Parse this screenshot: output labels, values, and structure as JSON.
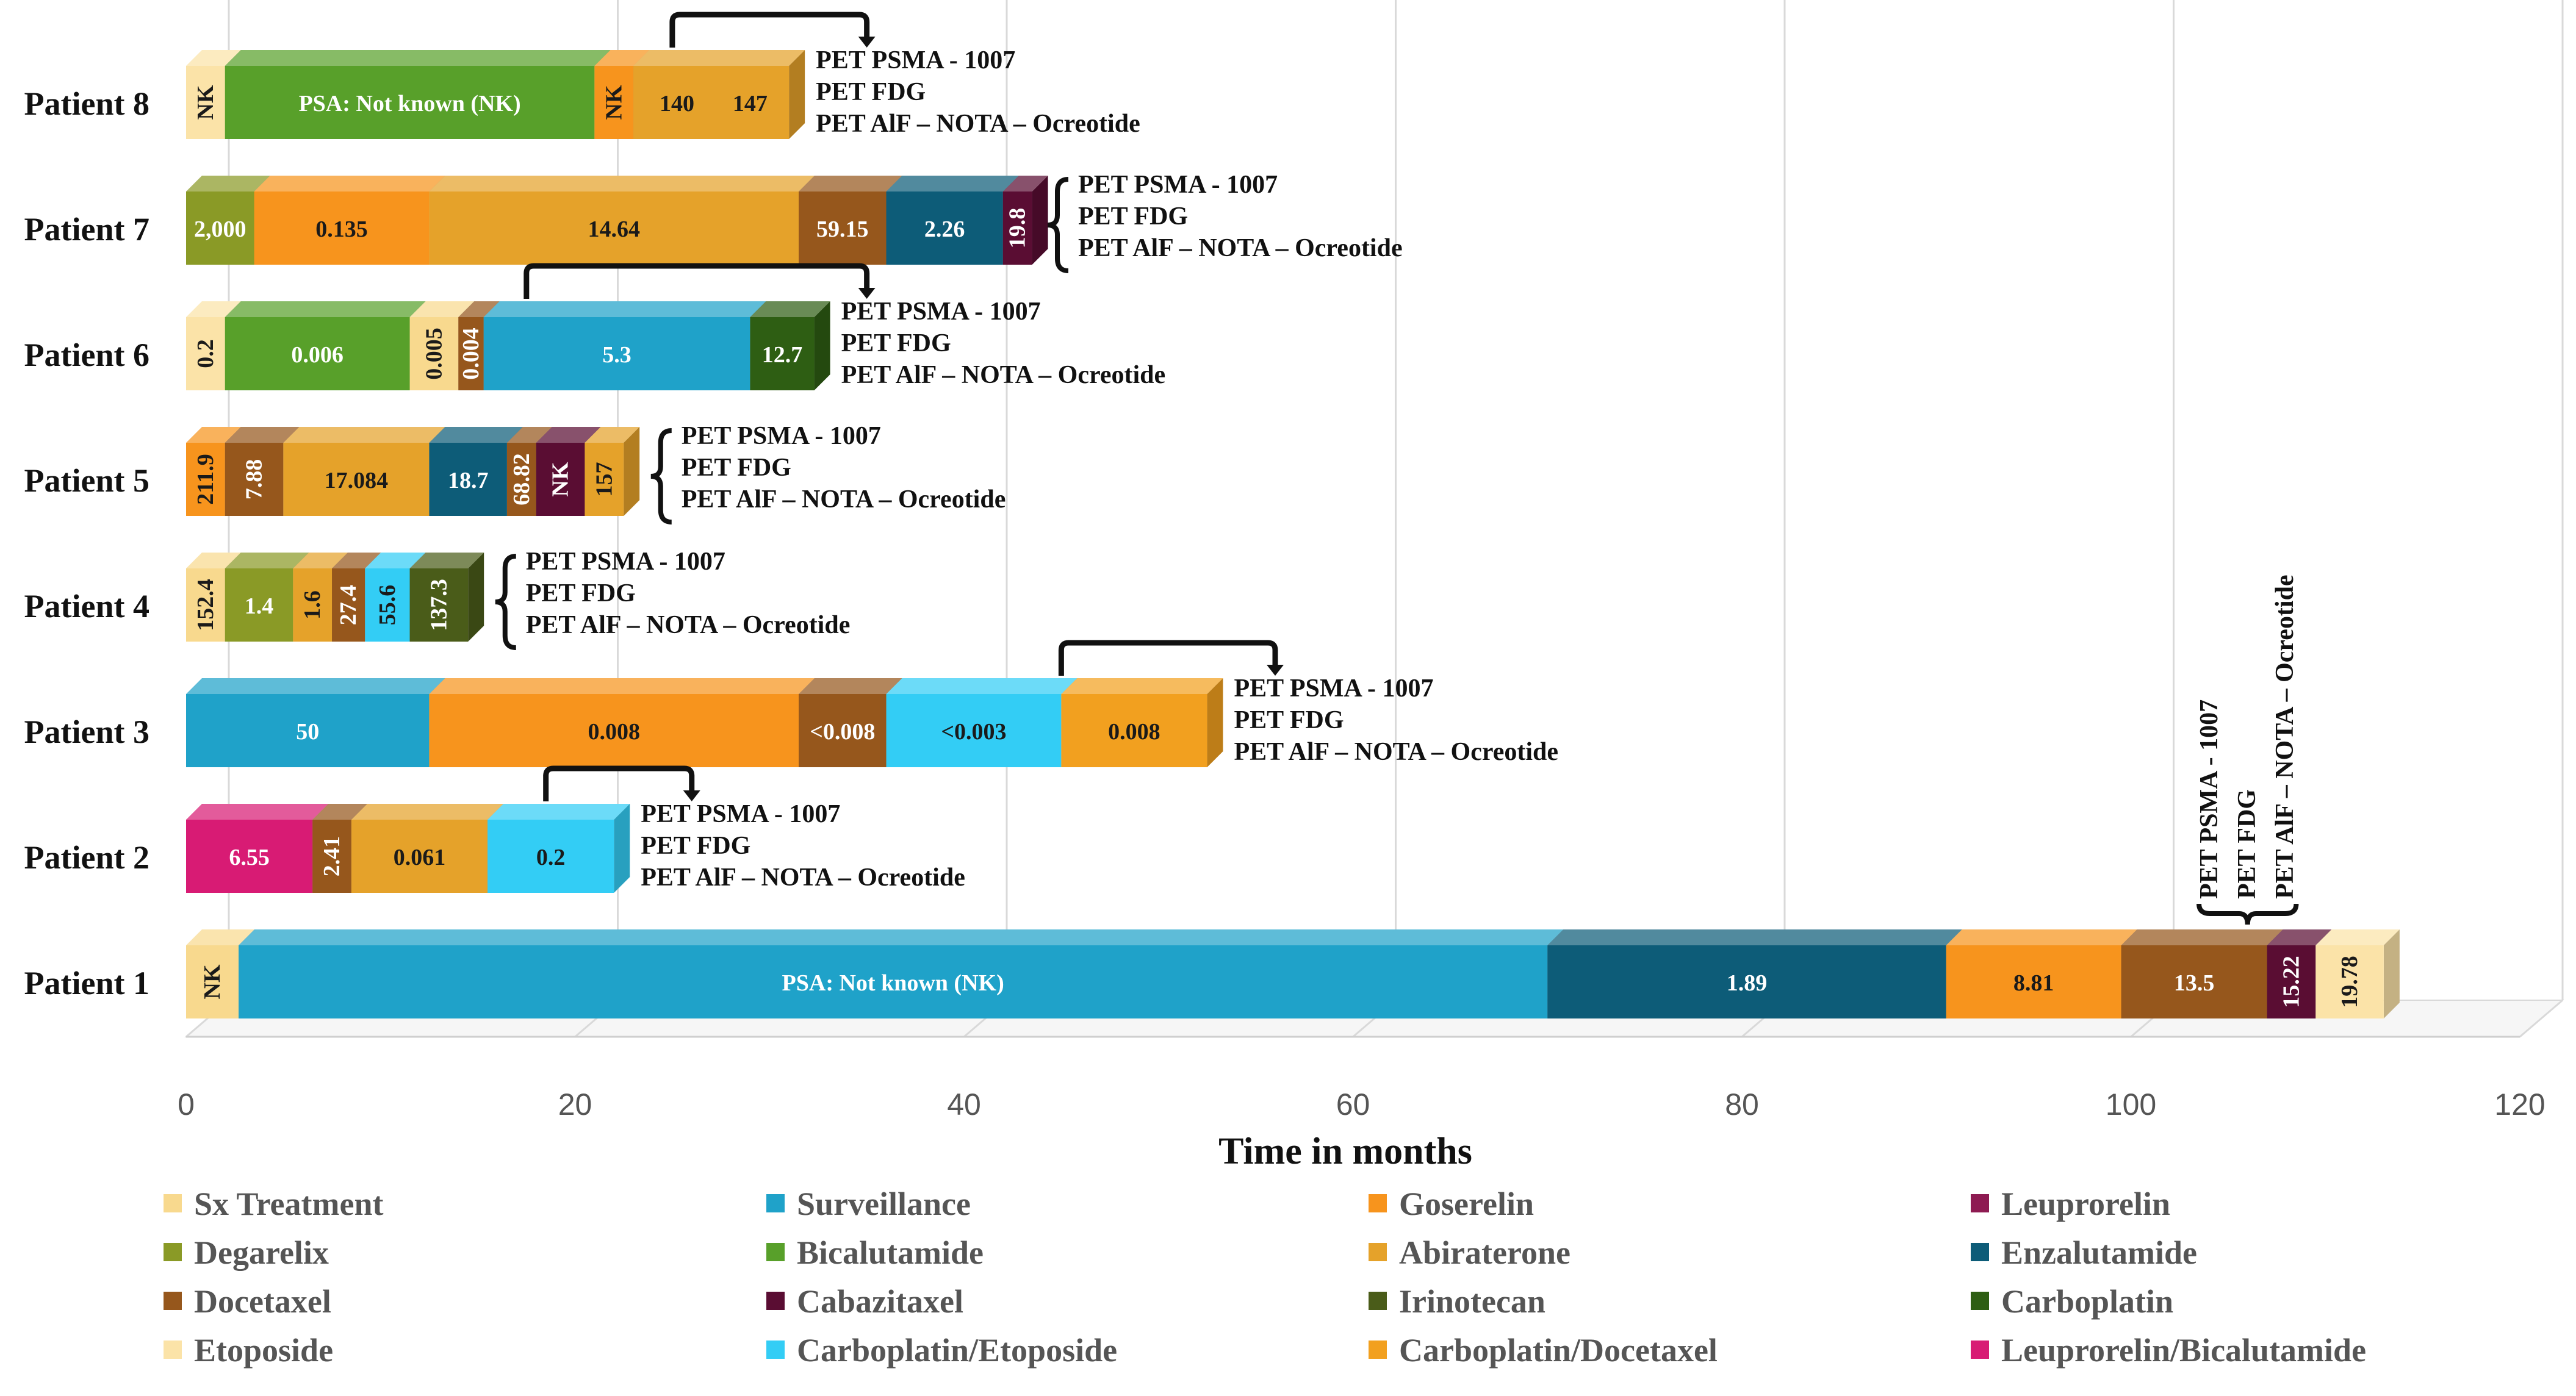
{
  "colors": {
    "Sx Treatment": "#f8d98e",
    "Surveillance": "#1fa2c9",
    "Goserelin": "#f7941d",
    "Leuprorelin": "#8e1b52",
    "Degarelix": "#8a9a26",
    "Bicalutamide": "#58a02a",
    "Abiraterone": "#e5a22a",
    "Enzalutamide": "#0d5c78",
    "Docetaxel": "#96571c",
    "Cabazitaxel": "#5a0d33",
    "Irinotecan": "#4a5c19",
    "Carboplatin": "#2e5e13",
    "Etoposide": "#fbe3a8",
    "Carboplatin/Etoposide": "#33cdf5",
    "Carboplatin/Docetaxel": "#f2a01f",
    "Leuprorelin/Bicalutamide": "#d81b74"
  },
  "chart_data": {
    "type": "bar",
    "orientation": "horizontal-stacked",
    "xlabel": "Time in months",
    "xlim": [
      0,
      120
    ],
    "xticks": [
      0,
      20,
      40,
      60,
      80,
      100,
      120
    ],
    "grid": true,
    "legend_position": "bottom",
    "legend": [
      "Sx Treatment",
      "Surveillance",
      "Goserelin",
      "Leuprorelin",
      "Degarelix",
      "Bicalutamide",
      "Abiraterone",
      "Enzalutamide",
      "Docetaxel",
      "Cabazitaxel",
      "Irinotecan",
      "Carboplatin",
      "Etoposide",
      "Carboplatin/Etoposide",
      "Carboplatin/Docetaxel",
      "Leuprorelin/Bicalutamide"
    ],
    "annotation_lines": [
      "PET PSMA - 1007",
      "PET FDG",
      "PET AlF – NOTA – Ocreotide"
    ],
    "patients": [
      {
        "name": "Patient 8",
        "segments": [
          {
            "treatment": "Etoposide",
            "start": 0,
            "end": 2,
            "label": "NK",
            "vertical": true
          },
          {
            "treatment": "Bicalutamide",
            "start": 2,
            "end": 21,
            "label": "PSA: Not known (NK)"
          },
          {
            "treatment": "Goserelin",
            "start": 21,
            "end": 23,
            "label": "NK",
            "vertical": true
          },
          {
            "treatment": "Abiraterone",
            "start": 23,
            "end": 31,
            "label": "140",
            "label2": "147"
          }
        ],
        "annotation": {
          "style": "arrow",
          "from": 25,
          "to": 35
        }
      },
      {
        "name": "Patient 7",
        "segments": [
          {
            "treatment": "Degarelix",
            "start": 0,
            "end": 3.5,
            "label": "2,000"
          },
          {
            "treatment": "Goserelin",
            "start": 3.5,
            "end": 12.5,
            "label": "0.135"
          },
          {
            "treatment": "Abiraterone",
            "start": 12.5,
            "end": 31.5,
            "label": "14.64"
          },
          {
            "treatment": "Docetaxel",
            "start": 31.5,
            "end": 36,
            "label": "59.15"
          },
          {
            "treatment": "Enzalutamide",
            "start": 36,
            "end": 42,
            "label": "2.26"
          },
          {
            "treatment": "Cabazitaxel",
            "start": 42,
            "end": 43.5,
            "label": "19.8",
            "vertical": true
          }
        ],
        "annotation": {
          "style": "brace",
          "at": 44.8
        }
      },
      {
        "name": "Patient 6",
        "segments": [
          {
            "treatment": "Etoposide",
            "start": 0,
            "end": 2,
            "label": "0.2",
            "vertical": true
          },
          {
            "treatment": "Bicalutamide",
            "start": 2,
            "end": 11.5,
            "label": "0.006"
          },
          {
            "treatment": "Sx Treatment",
            "start": 11.5,
            "end": 14,
            "label": "0.005",
            "vertical": true
          },
          {
            "treatment": "Docetaxel",
            "start": 14,
            "end": 15.3,
            "label": "0.004",
            "vertical": true
          },
          {
            "treatment": "Surveillance",
            "start": 15.3,
            "end": 29,
            "label": "5.3"
          },
          {
            "treatment": "Carboplatin",
            "start": 29,
            "end": 32.3,
            "label": "12.7"
          }
        ],
        "annotation": {
          "style": "arrow",
          "from": 17.5,
          "to": 35
        }
      },
      {
        "name": "Patient 5",
        "segments": [
          {
            "treatment": "Goserelin",
            "start": 0,
            "end": 2,
            "label": "211.9",
            "vertical": true
          },
          {
            "treatment": "Docetaxel",
            "start": 2,
            "end": 5,
            "label": "7.88",
            "vertical": true
          },
          {
            "treatment": "Abiraterone",
            "start": 5,
            "end": 12.5,
            "label": "17.084"
          },
          {
            "treatment": "Enzalutamide",
            "start": 12.5,
            "end": 16.5,
            "label": "18.7"
          },
          {
            "treatment": "Docetaxel",
            "start": 16.5,
            "end": 18,
            "label": "68.82",
            "vertical": true
          },
          {
            "treatment": "Cabazitaxel",
            "start": 18,
            "end": 20.5,
            "label": "NK",
            "vertical": true
          },
          {
            "treatment": "Abiraterone",
            "start": 20.5,
            "end": 22.5,
            "label": "157",
            "vertical": true
          }
        ],
        "annotation": {
          "style": "brace",
          "at": 24.4
        }
      },
      {
        "name": "Patient 4",
        "segments": [
          {
            "treatment": "Sx Treatment",
            "start": 0,
            "end": 2,
            "label": "152.4",
            "vertical": true
          },
          {
            "treatment": "Degarelix",
            "start": 2,
            "end": 5.5,
            "label": "1.4"
          },
          {
            "treatment": "Abiraterone",
            "start": 5.5,
            "end": 7.5,
            "label": "1.6",
            "vertical": true
          },
          {
            "treatment": "Docetaxel",
            "start": 7.5,
            "end": 9.2,
            "label": "27.4",
            "vertical": true
          },
          {
            "treatment": "Carboplatin/Etoposide",
            "start": 9.2,
            "end": 11.5,
            "label": "55.6",
            "vertical": true
          },
          {
            "treatment": "Irinotecan",
            "start": 11.5,
            "end": 14.5,
            "label": "137.3",
            "vertical": true
          }
        ],
        "annotation": {
          "style": "brace",
          "at": 16.4
        }
      },
      {
        "name": "Patient 3",
        "segments": [
          {
            "treatment": "Surveillance",
            "start": 0,
            "end": 12.5,
            "label": "50"
          },
          {
            "treatment": "Goserelin",
            "start": 12.5,
            "end": 31.5,
            "label": "0.008"
          },
          {
            "treatment": "Docetaxel",
            "start": 31.5,
            "end": 36,
            "label": "<0.008"
          },
          {
            "treatment": "Carboplatin/Etoposide",
            "start": 36,
            "end": 45,
            "label": "<0.003"
          },
          {
            "treatment": "Carboplatin/Docetaxel",
            "start": 45,
            "end": 52.5,
            "label": "0.008"
          }
        ],
        "annotation": {
          "style": "arrow",
          "from": 45,
          "to": 56
        }
      },
      {
        "name": "Patient 2",
        "segments": [
          {
            "treatment": "Leuprorelin/Bicalutamide",
            "start": 0,
            "end": 6.5,
            "label": "6.55"
          },
          {
            "treatment": "Docetaxel",
            "start": 6.5,
            "end": 8.5,
            "label": "2.41",
            "vertical": true
          },
          {
            "treatment": "Abiraterone",
            "start": 8.5,
            "end": 15.5,
            "label": "0.061"
          },
          {
            "treatment": "Carboplatin/Etoposide",
            "start": 15.5,
            "end": 22,
            "label": "0.2"
          }
        ],
        "annotation": {
          "style": "arrow",
          "from": 18.5,
          "to": 26
        }
      },
      {
        "name": "Patient 1",
        "segments": [
          {
            "treatment": "Sx Treatment",
            "start": 0,
            "end": 2.7,
            "label": "NK",
            "vertical": true
          },
          {
            "treatment": "Surveillance",
            "start": 2.7,
            "end": 70,
            "label": "PSA: Not known (NK)"
          },
          {
            "treatment": "Enzalutamide",
            "start": 70,
            "end": 90.5,
            "label": "1.89"
          },
          {
            "treatment": "Goserelin",
            "start": 90.5,
            "end": 99.5,
            "label": "8.81"
          },
          {
            "treatment": "Docetaxel",
            "start": 99.5,
            "end": 107,
            "label": "13.5"
          },
          {
            "treatment": "Cabazitaxel",
            "start": 107,
            "end": 109.5,
            "label": "15.22",
            "vertical": true
          },
          {
            "treatment": "Etoposide",
            "start": 109.5,
            "end": 113,
            "label": "19.78",
            "vertical": true
          }
        ],
        "annotation": {
          "style": "vertical-brace",
          "at": 106
        }
      }
    ]
  }
}
